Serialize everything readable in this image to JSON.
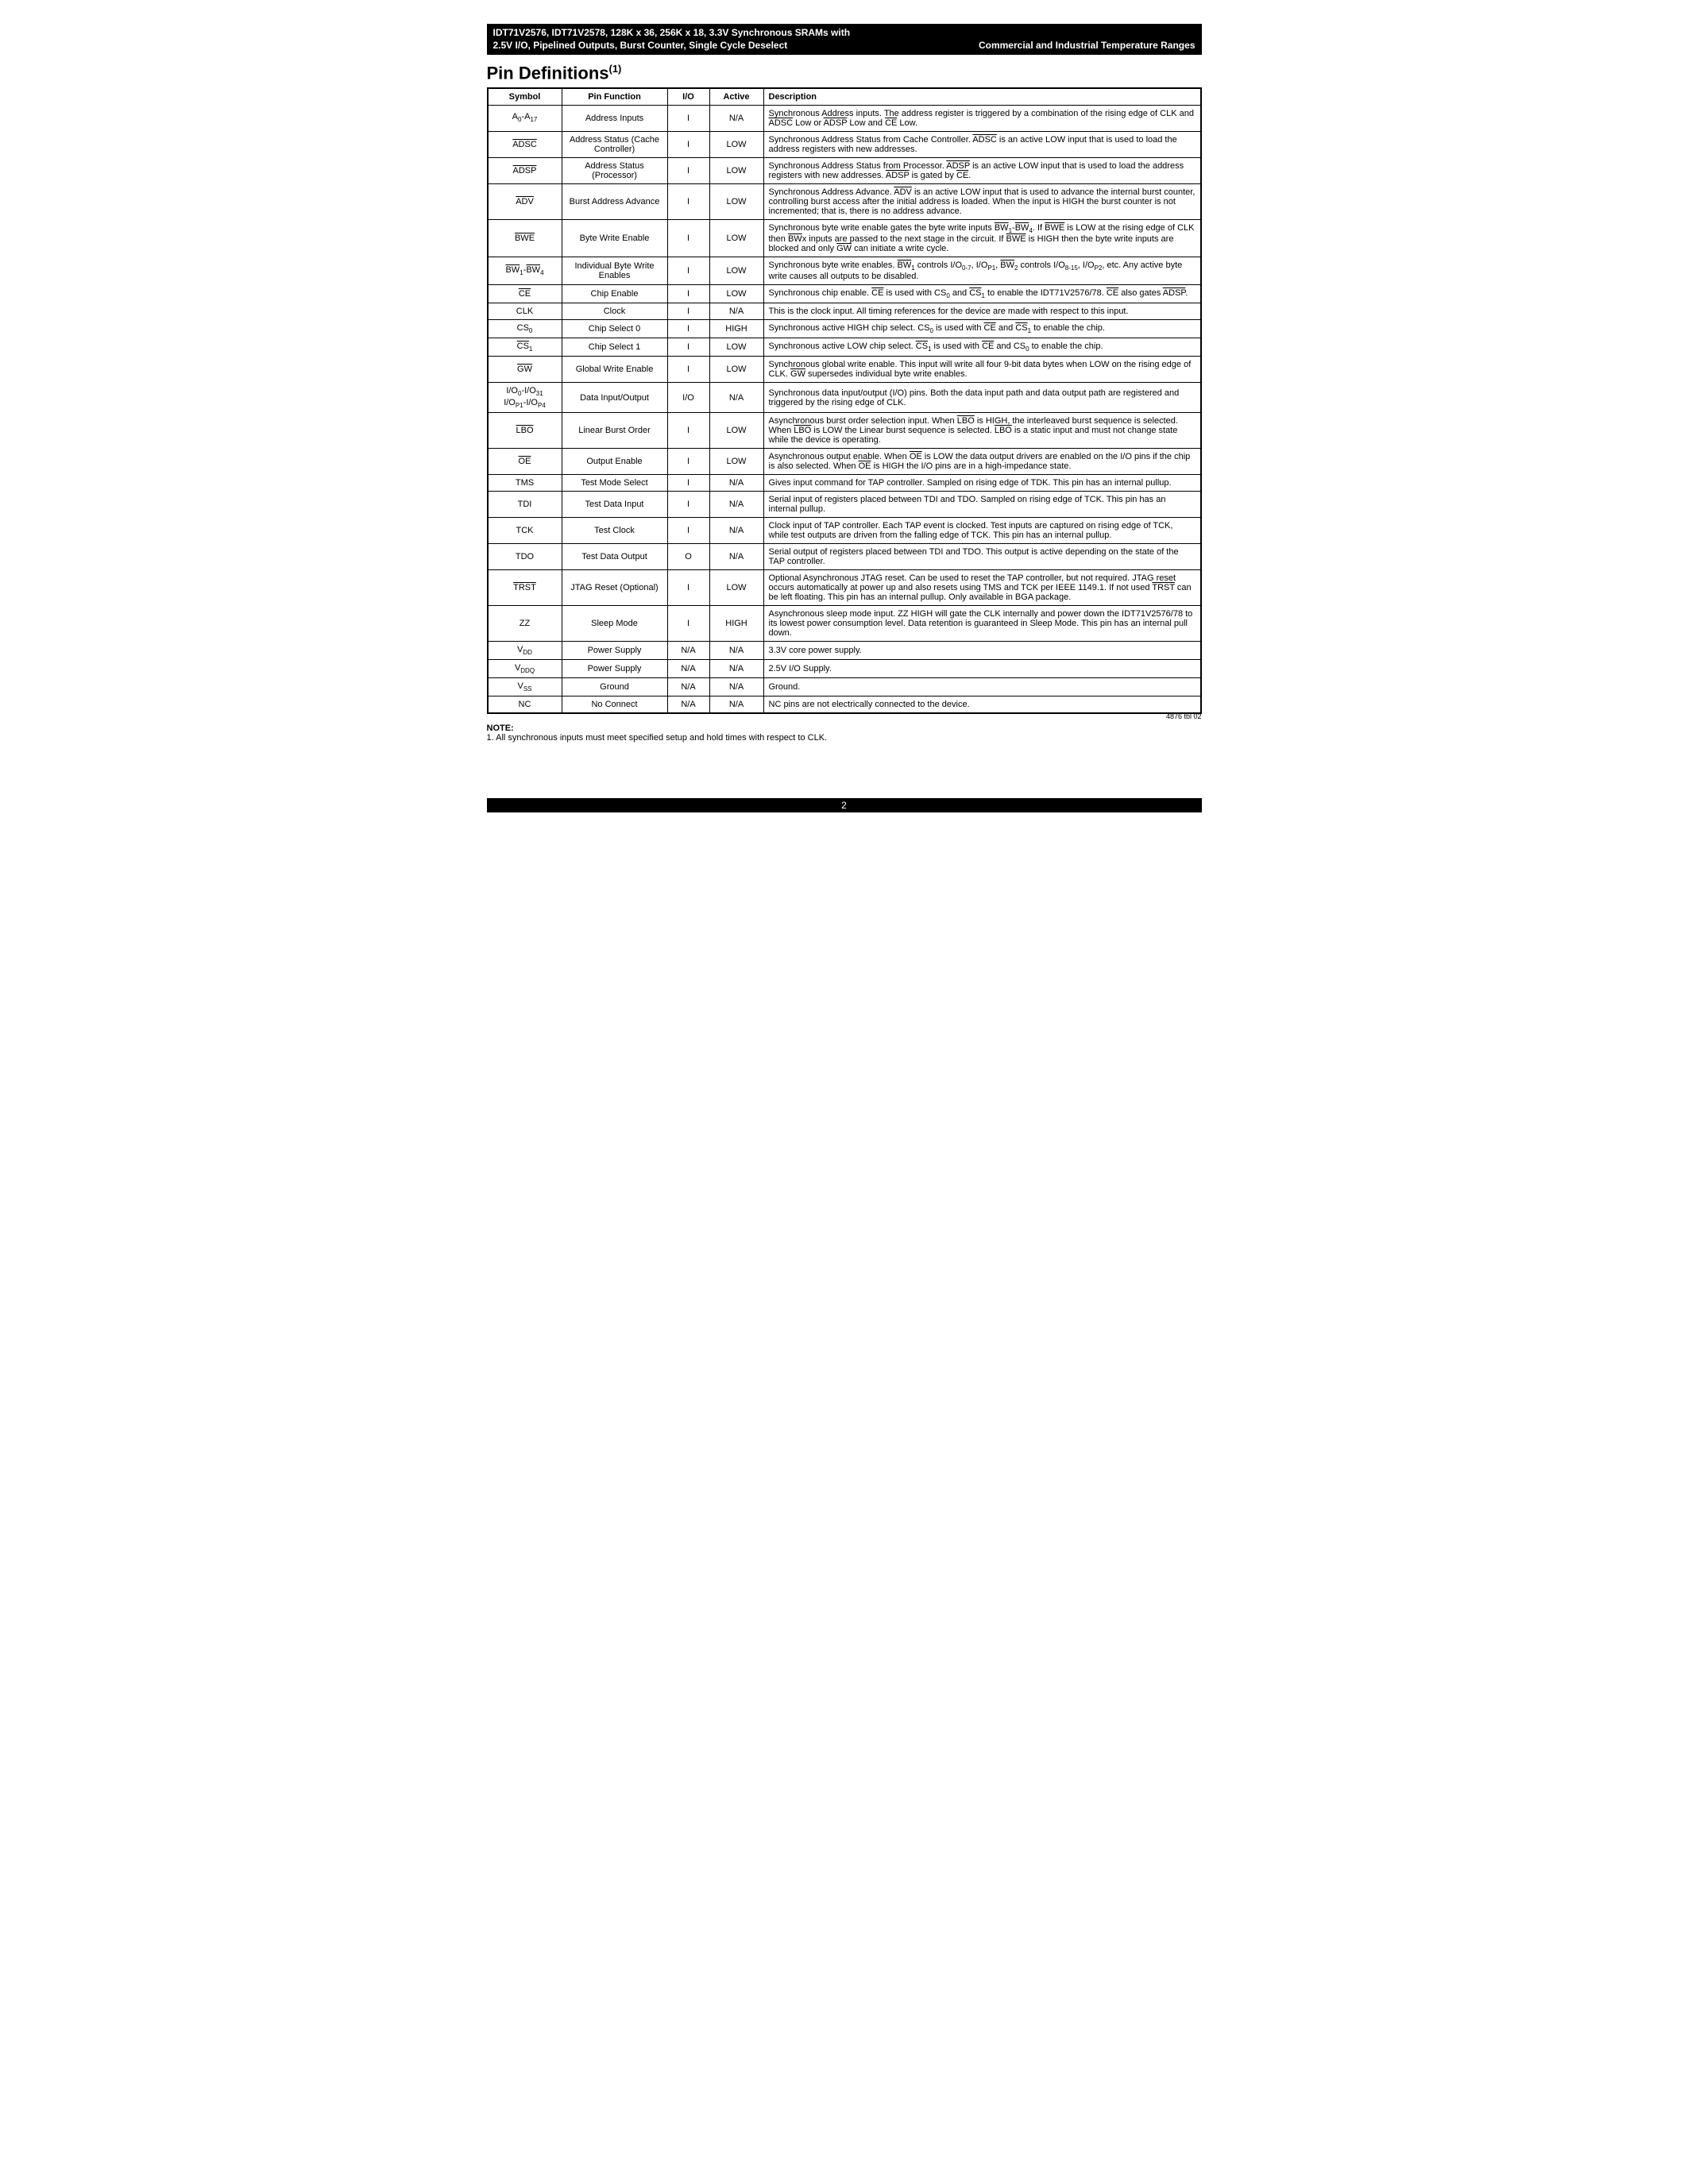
{
  "header": {
    "line1": "IDT71V2576, IDT71V2578, 128K x 36, 256K x 18, 3.3V Synchronous SRAMs with",
    "line2_left": "2.5V I/O, Pipelined Outputs, Burst Counter, Single Cycle Deselect",
    "line2_right": "Commercial and Industrial Temperature Ranges"
  },
  "section_title_text": "Pin Definitions",
  "section_title_super": "(1)",
  "columns": {
    "symbol": "Symbol",
    "pin_function": "Pin Function",
    "io": "I/O",
    "active": "Active",
    "description": "Description"
  },
  "rows": [
    {
      "symbol_html": "A<span class='sub'>0</span>-A<span class='sub'>17</span>",
      "func": "Address Inputs",
      "io": "I",
      "active": "N/A",
      "desc_html": "Synchronous Address inputs. The address register is triggered by a combination of the rising edge of CLK and <span class='ov'>ADSC</span> Low or <span class='ov'>ADSP</span> Low and <span class='ov'>CE</span> Low."
    },
    {
      "symbol_html": "<span class='ov'>ADSC</span>",
      "func": "Address Status (Cache Controller)",
      "io": "I",
      "active": "LOW",
      "desc_html": "Synchronous Address Status from Cache Controller. <span class='ov'>ADSC</span> is an active LOW input that is used to load the address registers with new addresses."
    },
    {
      "symbol_html": "<span class='ov'>ADSP</span>",
      "func": "Address Status (Processor)",
      "io": "I",
      "active": "LOW",
      "desc_html": "Synchronous Address Status from Processor. <span class='ov'>ADSP</span> is an active LOW input that is used to load the address registers with new addresses. <span class='ov'>ADSP</span> is gated by <span class='ov'>CE</span>."
    },
    {
      "symbol_html": "<span class='ov'>ADV</span>",
      "func": "Burst Address Advance",
      "io": "I",
      "active": "LOW",
      "desc_html": "Synchronous Address Advance. <span class='ov'>ADV</span> is an active LOW input that is used to advance the internal burst counter, controlling burst access after the initial address is loaded. When the input is HIGH the burst counter is not incremented; that is, there is no address advance."
    },
    {
      "symbol_html": "<span class='ov'>BWE</span>",
      "func": "Byte Write Enable",
      "io": "I",
      "active": "LOW",
      "desc_html": "Synchronous byte write enable gates the byte write inputs <span class='ov'>BW</span><span class='sub'>1</span>-<span class='ov'>BW</span><span class='sub'>4</span>. If <span class='ov'>BWE</span> is LOW at the rising edge of CLK then <span class='ov'>BW</span>x inputs are passed to the next stage in the circuit. If <span class='ov'>BWE</span> is HIGH then the byte write inputs are blocked and only <span class='ov'>GW</span> can initiate a write cycle."
    },
    {
      "symbol_html": "<span class='ov'>BW</span><span class='sub'>1</span>-<span class='ov'>BW</span><span class='sub'>4</span>",
      "func": "Individual Byte Write Enables",
      "io": "I",
      "active": "LOW",
      "desc_html": "Synchronous byte write enables. <span class='ov'>BW</span><span class='sub'>1</span> controls I/O<span class='sub'>0-7</span>, I/O<span class='sub'>P1</span>, <span class='ov'>BW</span><span class='sub'>2</span> controls I/O<span class='sub'>8-15</span>, I/O<span class='sub'>P2</span>, etc. Any active byte write causes all outputs to be disabled."
    },
    {
      "symbol_html": "<span class='ov'>CE</span>",
      "func": "Chip Enable",
      "io": "I",
      "active": "LOW",
      "desc_html": "Synchronous chip enable. <span class='ov'>CE</span> is used with CS<span class='sub'>0</span> and <span class='ov'>CS</span><span class='sub'>1</span> to enable the IDT71V2576/78. <span class='ov'>CE</span> also gates <span class='ov'>ADSP</span>."
    },
    {
      "symbol_html": "CLK",
      "func": "Clock",
      "io": "I",
      "active": "N/A",
      "desc_html": "This is the clock input. All timing references for the device are made with respect to this input."
    },
    {
      "symbol_html": "CS<span class='sub'>0</span>",
      "func": "Chip Select 0",
      "io": "I",
      "active": "HIGH",
      "desc_html": "Synchronous active HIGH chip select. CS<span class='sub'>0</span> is used with <span class='ov'>CE</span> and <span class='ov'>CS</span><span class='sub'>1</span> to enable the chip."
    },
    {
      "symbol_html": "<span class='ov'>CS</span><span class='sub'>1</span>",
      "func": "Chip Select 1",
      "io": "I",
      "active": "LOW",
      "desc_html": "Synchronous active LOW chip select. <span class='ov'>CS</span><span class='sub'>1</span> is used with <span class='ov'>CE</span> and CS<span class='sub'>0</span> to enable the chip."
    },
    {
      "symbol_html": "<span class='ov'>GW</span>",
      "func": "Global Write Enable",
      "io": "I",
      "active": "LOW",
      "desc_html": "Synchronous global write enable. This input will write all four 9-bit data bytes when LOW on the rising edge of CLK. <span class='ov'>GW</span> supersedes individual byte write enables."
    },
    {
      "symbol_html": "I/O<span class='sub'>0</span>-I/O<span class='sub'>31</span><br>I/O<span class='sub'>P1</span>-I/O<span class='sub'>P4</span>",
      "func": "Data Input/Output",
      "io": "I/O",
      "active": "N/A",
      "desc_html": "Synchronous data input/output (I/O) pins. Both the data input path and data output path are registered and triggered by the rising edge of CLK."
    },
    {
      "symbol_html": "<span class='ov'>LBO</span>",
      "func": "Linear Burst Order",
      "io": "I",
      "active": "LOW",
      "desc_html": "Asynchronous burst order selection input. When <span class='ov'>LBO</span> is HIGH, the interleaved burst sequence is selected. When <span class='ov'>LBO</span> is LOW the Linear burst sequence is selected. <span class='ov'>LBO</span> is a static input and must not change state while the device is operating."
    },
    {
      "symbol_html": "<span class='ov'>OE</span>",
      "func": "Output Enable",
      "io": "I",
      "active": "LOW",
      "desc_html": "Asynchronous output enable. When <span class='ov'>OE</span> is LOW the data output drivers are enabled on the I/O pins if the chip is also selected. When <span class='ov'>OE</span> is HIGH the I/O pins are in a high-impedance state."
    },
    {
      "symbol_html": "TMS",
      "func": "Test Mode Select",
      "io": "I",
      "active": "N/A",
      "desc_html": "Gives input command for TAP controller. Sampled on rising edge of TDK. This pin has an internal pullup."
    },
    {
      "symbol_html": "TDI",
      "func": "Test Data Input",
      "io": "I",
      "active": "N/A",
      "desc_html": "Serial input of registers placed between TDI and TDO. Sampled on rising edge of TCK. This pin has an internal pullup."
    },
    {
      "symbol_html": "TCK",
      "func": "Test Clock",
      "io": "I",
      "active": "N/A",
      "desc_html": "Clock input of TAP controller. Each TAP event is clocked. Test inputs are captured on rising edge of TCK, while test outputs are driven from the falling edge of TCK. This pin has an internal pullup."
    },
    {
      "symbol_html": "TDO",
      "func": "Test Data Output",
      "io": "O",
      "active": "N/A",
      "desc_html": "Serial output of registers placed between TDI and TDO. This output is active depending on the state of the TAP controller."
    },
    {
      "symbol_html": "<span class='ov'>TRST</span>",
      "func": "JTAG Reset (Optional)",
      "io": "I",
      "active": "LOW",
      "desc_html": "Optional Asynchronous JTAG reset. Can be used to reset the TAP controller, but not required. JTAG reset occurs automatically at power up and also resets using TMS and TCK per IEEE 1149.1. If not used <span class='ov'>TRST</span> can be left floating. This pin has an internal pullup. Only available in BGA package."
    },
    {
      "symbol_html": "ZZ",
      "func": "Sleep Mode",
      "io": "I",
      "active": "HIGH",
      "desc_html": "Asynchronous sleep mode input. ZZ HIGH will gate the CLK internally and power down the IDT71V2576/78 to its lowest power consumption level. Data retention is guaranteed in Sleep Mode. This pin has an internal pull down."
    },
    {
      "symbol_html": "V<span class='sub'>DD</span>",
      "func": "Power Supply",
      "io": "N/A",
      "active": "N/A",
      "desc_html": "3.3V core power supply."
    },
    {
      "symbol_html": "V<span class='sub'>DDQ</span>",
      "func": "Power Supply",
      "io": "N/A",
      "active": "N/A",
      "desc_html": "2.5V I/O Supply."
    },
    {
      "symbol_html": "V<span class='sub'>SS</span>",
      "func": "Ground",
      "io": "N/A",
      "active": "N/A",
      "desc_html": "Ground."
    },
    {
      "symbol_html": "NC",
      "func": "No Connect",
      "io": "N/A",
      "active": "N/A",
      "desc_html": "NC pins are not electrically connected to the device."
    }
  ],
  "figref": "4876 tbl 02",
  "note_heading": "NOTE:",
  "note_text": "1.  All synchronous inputs must meet specified setup and hold times with respect to CLK.",
  "page_number": "2"
}
